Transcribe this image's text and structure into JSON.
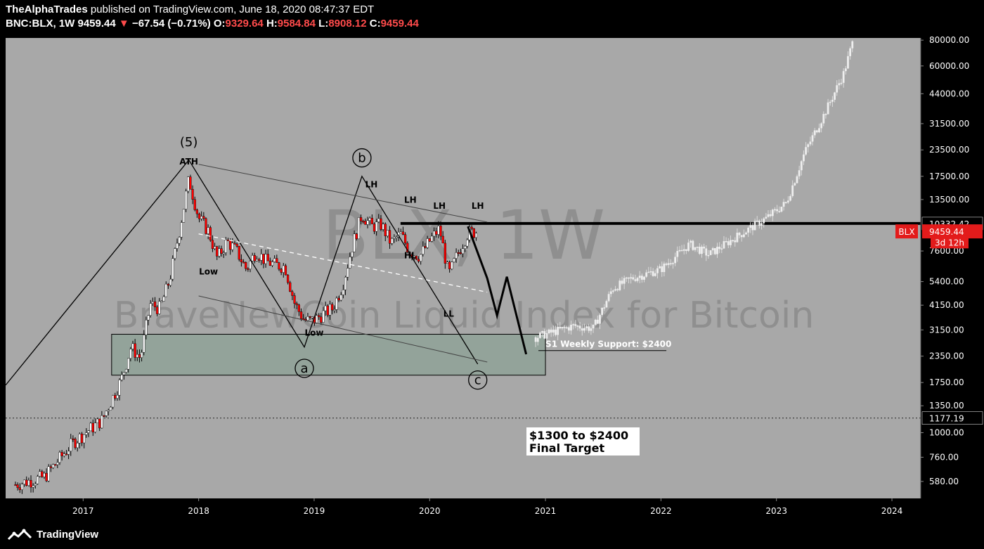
{
  "header": {
    "author": "TheAlphaTrades",
    "published": "published on TradingView.com, June 18, 2020 08:47:37 EDT",
    "symbol": "BNC:BLX, 1W",
    "last": "9459.44",
    "change_arrow": "▼",
    "change": "−67.54 (−0.71%)",
    "o_label": "O:",
    "o_value": "9329.64",
    "h_label": "H:",
    "h_value": "9584.84",
    "l_label": "L:",
    "l_value": "8908.12",
    "c_label": "C:",
    "c_value": "9459.44"
  },
  "footer": {
    "brand": "TradingView",
    "logo_icon": "tradingview-logo-icon"
  },
  "colors": {
    "background": "#a8a8a8",
    "frame": "#000000",
    "bear": "#ff0000",
    "bull": "#ffffff",
    "support_zone": "#93a39a",
    "price_tag": "#e31b1b"
  },
  "watermark": {
    "line1": "BLX, 1W",
    "line2": "BraveNewCoin Liquid Index for Bitcoin"
  },
  "chart_data": {
    "type": "candlestick",
    "y_scale": "log",
    "ylim": [
      480,
      82000
    ],
    "x_range": [
      "2016-05",
      "2024-04"
    ],
    "y_ticks": [
      "80000.00",
      "60000.00",
      "44000.00",
      "31500.00",
      "23500.00",
      "17500.00",
      "13500.00",
      "10332.42",
      "9459.44",
      "7600.00",
      "5400.00",
      "4150.00",
      "3150.00",
      "2350.00",
      "1750.00",
      "1350.00",
      "1177.19",
      "1000.00",
      "760.00",
      "580.00"
    ],
    "x_ticks": [
      "2017",
      "2018",
      "2019",
      "2020",
      "2021",
      "2022",
      "2023",
      "2024"
    ],
    "price_tags": [
      {
        "label": "BLX",
        "value": "9459.44",
        "price": 9459.44
      },
      {
        "label": "3d 12h",
        "price": 8400
      }
    ],
    "horizontal_lines": [
      {
        "price": 10332.42,
        "from": "2019-10",
        "to": "2024-04",
        "style": "solid-thick"
      },
      {
        "price": 1177.19,
        "style": "dotted"
      }
    ],
    "support_zone": {
      "from": "2017-04",
      "to": "2021-01",
      "low": 1900,
      "high": 3000
    },
    "wave_labels": [
      {
        "text": "(5)",
        "date": "2017-12",
        "price": 24500
      },
      {
        "text": "b",
        "date": "2019-06",
        "price": 21500,
        "circled": true
      },
      {
        "text": "a",
        "date": "2018-12",
        "price": 2050,
        "circled": true
      },
      {
        "text": "c",
        "date": "2020-06",
        "price": 1800,
        "circled": true
      }
    ],
    "annotations": [
      {
        "text": "ATH",
        "date": "2017-12",
        "price": 20000
      },
      {
        "text": "Low",
        "date": "2018-02",
        "price": 5850
      },
      {
        "text": "Low",
        "date": "2019-01",
        "price": 2950
      },
      {
        "text": "LH",
        "date": "2019-07",
        "price": 15500
      },
      {
        "text": "LH",
        "date": "2019-11",
        "price": 13000
      },
      {
        "text": "LH",
        "date": "2020-02",
        "price": 12200
      },
      {
        "text": "LH",
        "date": "2020-06",
        "price": 12200
      },
      {
        "text": "HL",
        "date": "2019-11",
        "price": 7000
      },
      {
        "text": "LL",
        "date": "2020-03",
        "price": 3650
      },
      {
        "text": "S1 Weekly Support: $2400",
        "date": "2021-01",
        "price": 2600
      }
    ],
    "target_box": {
      "line1": "$1300 to $2400",
      "line2": "Final Target",
      "date": "2020-11",
      "price": 900
    },
    "price_path": [
      [
        "2016-06",
        560
      ],
      [
        "2016-09",
        610
      ],
      [
        "2016-12",
        900
      ],
      [
        "2017-03",
        1150
      ],
      [
        "2017-05",
        1800
      ],
      [
        "2017-06",
        2600
      ],
      [
        "2017-07",
        2300
      ],
      [
        "2017-08",
        4200
      ],
      [
        "2017-09",
        4000
      ],
      [
        "2017-10",
        5500
      ],
      [
        "2017-11",
        9500
      ],
      [
        "2017-12",
        17000
      ],
      [
        "2018-01",
        11000
      ],
      [
        "2018-02",
        9500
      ],
      [
        "2018-03",
        7000
      ],
      [
        "2018-04",
        8500
      ],
      [
        "2018-05",
        7600
      ],
      [
        "2018-06",
        6200
      ],
      [
        "2018-07",
        7600
      ],
      [
        "2018-08",
        6800
      ],
      [
        "2018-09",
        6500
      ],
      [
        "2018-10",
        6400
      ],
      [
        "2018-11",
        4200
      ],
      [
        "2018-12",
        3500
      ],
      [
        "2019-01",
        3500
      ],
      [
        "2019-02",
        3800
      ],
      [
        "2019-03",
        4000
      ],
      [
        "2019-04",
        5200
      ],
      [
        "2019-05",
        8000
      ],
      [
        "2019-06",
        11500
      ],
      [
        "2019-07",
        10000
      ],
      [
        "2019-08",
        10200
      ],
      [
        "2019-09",
        8300
      ],
      [
        "2019-10",
        9200
      ],
      [
        "2019-11",
        7500
      ],
      [
        "2019-12",
        7200
      ],
      [
        "2020-01",
        8500
      ],
      [
        "2020-02",
        9800
      ],
      [
        "2020-03",
        5800
      ],
      [
        "2020-04",
        7500
      ],
      [
        "2020-05",
        9300
      ],
      [
        "2020-06",
        9459.44
      ]
    ],
    "projection_path": [
      [
        "2020-12",
        2900
      ],
      [
        "2021-04",
        3300
      ],
      [
        "2021-06",
        3200
      ],
      [
        "2021-08",
        5000
      ],
      [
        "2021-10",
        5600
      ],
      [
        "2022-01",
        6200
      ],
      [
        "2022-04",
        8200
      ],
      [
        "2022-06",
        7300
      ],
      [
        "2022-09",
        9000
      ],
      [
        "2022-12",
        11000
      ],
      [
        "2023-02",
        13000
      ],
      [
        "2023-04",
        23000
      ],
      [
        "2023-06",
        35000
      ],
      [
        "2023-08",
        55000
      ],
      [
        "2023-09",
        80000
      ]
    ],
    "wave_lines": [
      [
        [
          "2016-05",
          1700
        ],
        [
          "2017-12",
          21000
        ],
        [
          "2018-12",
          2600
        ],
        [
          "2019-06",
          17500
        ],
        [
          "2020-06",
          2150
        ]
      ]
    ],
    "channel_lines": [
      [
        [
          "2018-01",
          20000
        ],
        [
          "2020-07",
          10500
        ]
      ],
      [
        [
          "2018-01",
          4600
        ],
        [
          "2020-07",
          2200
        ]
      ],
      [
        [
          "2018-01",
          9200
        ],
        [
          "2020-07",
          4800
        ]
      ]
    ],
    "forecast_path": [
      [
        "2020-05",
        10000
      ],
      [
        "2020-07",
        5600
      ],
      [
        "2020-08",
        3700
      ],
      [
        "2020-09",
        5700
      ],
      [
        "2020-11",
        2400
      ]
    ]
  }
}
